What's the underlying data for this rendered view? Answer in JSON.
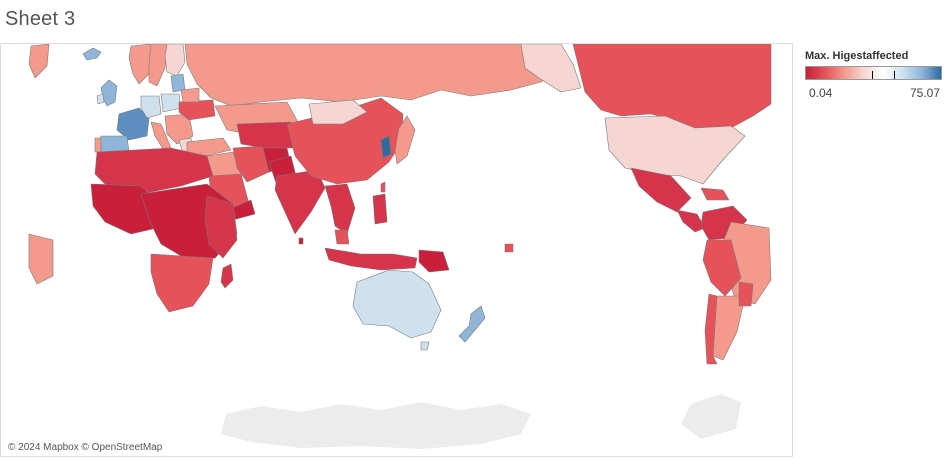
{
  "sheet": {
    "title": "Sheet 3"
  },
  "legend": {
    "title": "Max. Higestaffected",
    "min_label": "0.04",
    "max_label": "75.07",
    "min_value": 0.04,
    "max_value": 75.07,
    "colors": [
      "#c8203a",
      "#e5525a",
      "#f49a8c",
      "#f6d6d2",
      "#ffffff",
      "#cfe1ef",
      "#8fb6d8",
      "#2f6ba1"
    ]
  },
  "map": {
    "attribution": "© 2024 Mapbox © OpenStreetMap",
    "land_color": "#ececec",
    "border_color": "#7a7a7a"
  }
}
